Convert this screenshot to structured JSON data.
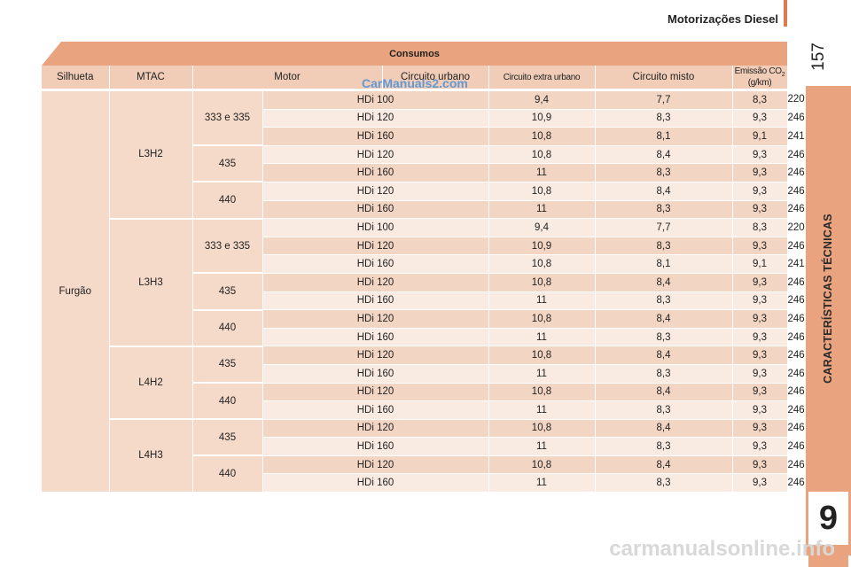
{
  "header": {
    "title": "Motorizações Diesel",
    "page_number": "157"
  },
  "sidebar": {
    "label": "CARACTERÍSTICAS TÉCNICAS",
    "chapter": "9"
  },
  "table": {
    "title": "Consumos",
    "columns": [
      "Silhueta",
      "MTAC",
      "Motor",
      "Circuito urbano",
      "Circuito extra urbano",
      "Circuito misto",
      "Emissão CO",
      "2",
      " (g/km)"
    ],
    "silhueta": "Furgão",
    "groups": [
      {
        "name": "L3H2",
        "mtac": [
          {
            "label": "333 e 335",
            "rows": [
              [
                "HDi 100",
                "9,4",
                "7,7",
                "8,3",
                "220"
              ],
              [
                "HDi 120",
                "10,9",
                "8,3",
                "9,3",
                "246"
              ],
              [
                "HDi 160",
                "10,8",
                "8,1",
                "9,1",
                "241"
              ]
            ]
          },
          {
            "label": "435",
            "rows": [
              [
                "HDi 120",
                "10,8",
                "8,4",
                "9,3",
                "246"
              ],
              [
                "HDi 160",
                "11",
                "8,3",
                "9,3",
                "246"
              ]
            ]
          },
          {
            "label": "440",
            "rows": [
              [
                "HDi 120",
                "10,8",
                "8,4",
                "9,3",
                "246"
              ],
              [
                "HDi 160",
                "11",
                "8,3",
                "9,3",
                "246"
              ]
            ]
          }
        ]
      },
      {
        "name": "L3H3",
        "mtac": [
          {
            "label": "333 e 335",
            "rows": [
              [
                "HDi 100",
                "9,4",
                "7,7",
                "8,3",
                "220"
              ],
              [
                "HDi 120",
                "10,9",
                "8,3",
                "9,3",
                "246"
              ],
              [
                "HDi 160",
                "10,8",
                "8,1",
                "9,1",
                "241"
              ]
            ]
          },
          {
            "label": "435",
            "rows": [
              [
                "HDi 120",
                "10,8",
                "8,4",
                "9,3",
                "246"
              ],
              [
                "HDi 160",
                "11",
                "8,3",
                "9,3",
                "246"
              ]
            ]
          },
          {
            "label": "440",
            "rows": [
              [
                "HDi 120",
                "10,8",
                "8,4",
                "9,3",
                "246"
              ],
              [
                "HDi 160",
                "11",
                "8,3",
                "9,3",
                "246"
              ]
            ]
          }
        ]
      },
      {
        "name": "L4H2",
        "mtac": [
          {
            "label": "435",
            "rows": [
              [
                "HDi 120",
                "10,8",
                "8,4",
                "9,3",
                "246"
              ],
              [
                "HDi 160",
                "11",
                "8,3",
                "9,3",
                "246"
              ]
            ]
          },
          {
            "label": "440",
            "rows": [
              [
                "HDi 120",
                "10,8",
                "8,4",
                "9,3",
                "246"
              ],
              [
                "HDi 160",
                "11",
                "8,3",
                "9,3",
                "246"
              ]
            ]
          }
        ]
      },
      {
        "name": "L4H3",
        "mtac": [
          {
            "label": "435",
            "rows": [
              [
                "HDi 120",
                "10,8",
                "8,4",
                "9,3",
                "246"
              ],
              [
                "HDi 160",
                "11",
                "8,3",
                "9,3",
                "246"
              ]
            ]
          },
          {
            "label": "440",
            "rows": [
              [
                "HDi 120",
                "10,8",
                "8,4",
                "9,3",
                "246"
              ],
              [
                "HDi 160",
                "11",
                "8,3",
                "9,3",
                "246"
              ]
            ]
          }
        ]
      }
    ]
  },
  "watermarks": {
    "middle": "CarManuals2.com",
    "bottom": "carmanualsonline.info"
  },
  "colors": {
    "accent": "#e9a37e",
    "row_dark": "#f3d5c3",
    "row_light": "#f9ebe2",
    "header_cell": "#f1cdb8"
  }
}
